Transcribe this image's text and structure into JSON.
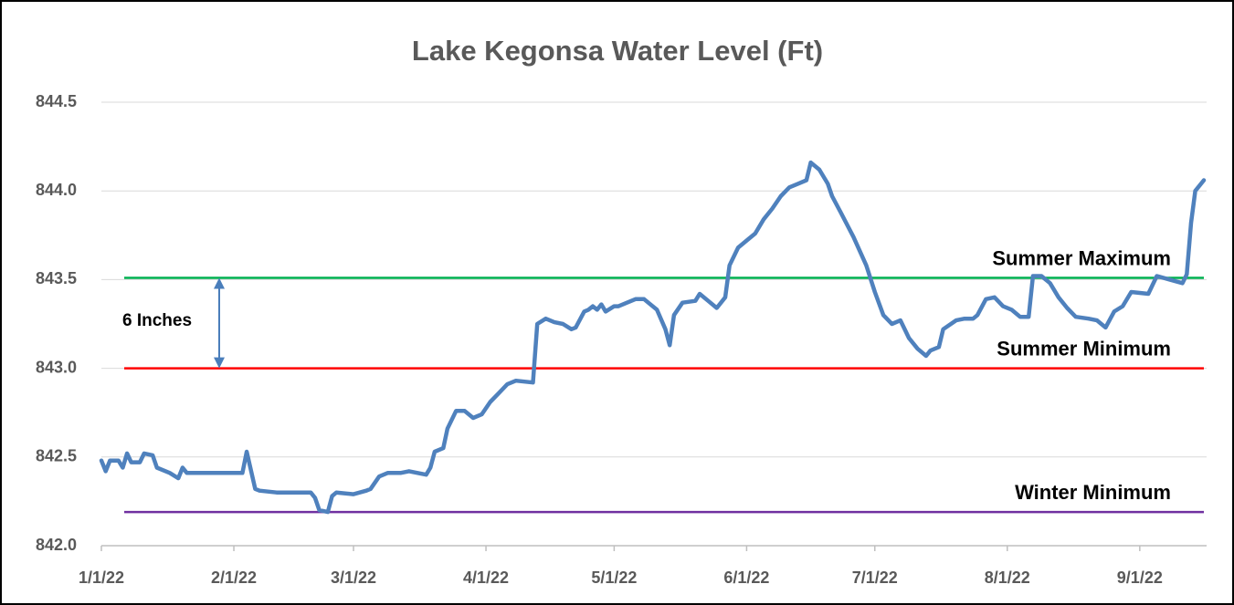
{
  "chart_data": {
    "type": "line",
    "title": "Lake Kegonsa Water Level (Ft)",
    "x": [
      "1/1/22",
      "1/2/22",
      "1/3/22",
      "1/5/22",
      "1/6/22",
      "1/7/22",
      "1/8/22",
      "1/10/22",
      "1/11/22",
      "1/13/22",
      "1/14/22",
      "1/17/22",
      "1/19/22",
      "1/20/22",
      "1/21/22",
      "2/3/22",
      "2/4/22",
      "2/6/22",
      "2/7/22",
      "2/11/22",
      "2/19/22",
      "2/20/22",
      "2/21/22",
      "2/23/22",
      "2/24/22",
      "2/25/22",
      "3/1/22",
      "3/4/22",
      "3/5/22",
      "3/7/22",
      "3/9/22",
      "3/12/22",
      "3/14/22",
      "3/16/22",
      "3/18/22",
      "3/19/22",
      "3/20/22",
      "3/22/22",
      "3/23/22",
      "3/25/22",
      "3/27/22",
      "3/29/22",
      "3/31/22",
      "4/2/22",
      "4/4/22",
      "4/6/22",
      "4/8/22",
      "4/12/22",
      "4/13/22",
      "4/15/22",
      "4/17/22",
      "4/19/22",
      "4/21/22",
      "4/22/22",
      "4/24/22",
      "4/25/22",
      "4/26/22",
      "4/27/22",
      "4/28/22",
      "4/29/22",
      "5/1/22",
      "5/2/22",
      "5/4/22",
      "5/6/22",
      "5/8/22",
      "5/9/22",
      "5/11/22",
      "5/13/22",
      "5/14/22",
      "5/15/22",
      "5/17/22",
      "5/20/22",
      "5/21/22",
      "5/23/22",
      "5/25/22",
      "5/27/22",
      "5/28/22",
      "5/30/22",
      "6/1/22",
      "6/3/22",
      "6/5/22",
      "6/7/22",
      "6/9/22",
      "6/11/22",
      "6/13/22",
      "6/15/22",
      "6/16/22",
      "6/18/22",
      "6/20/22",
      "6/21/22",
      "6/23/22",
      "6/26/22",
      "6/29/22",
      "7/1/22",
      "7/3/22",
      "7/5/22",
      "7/7/22",
      "7/9/22",
      "7/11/22",
      "7/13/22",
      "7/14/22",
      "7/16/22",
      "7/17/22",
      "7/20/22",
      "7/22/22",
      "7/24/22",
      "7/25/22",
      "7/27/22",
      "7/29/22",
      "7/31/22",
      "8/2/22",
      "8/4/22",
      "8/6/22",
      "8/7/22",
      "8/9/22",
      "8/11/22",
      "8/13/22",
      "8/15/22",
      "8/17/22",
      "8/20/22",
      "8/22/22",
      "8/24/22",
      "8/26/22",
      "8/28/22",
      "8/30/22",
      "9/3/22",
      "9/5/22",
      "9/8/22",
      "9/11/22",
      "9/12/22",
      "9/13/22",
      "9/14/22",
      "9/16/22"
    ],
    "series": [
      {
        "color": "#4f81bd",
        "values": [
          842.48,
          842.42,
          842.48,
          842.48,
          842.44,
          842.52,
          842.47,
          842.47,
          842.52,
          842.51,
          842.44,
          842.41,
          842.38,
          842.44,
          842.41,
          842.41,
          842.53,
          842.32,
          842.31,
          842.3,
          842.3,
          842.27,
          842.2,
          842.19,
          842.28,
          842.3,
          842.29,
          842.31,
          842.32,
          842.39,
          842.41,
          842.41,
          842.42,
          842.41,
          842.4,
          842.44,
          842.53,
          842.55,
          842.66,
          842.76,
          842.76,
          842.72,
          842.74,
          842.81,
          842.86,
          842.91,
          842.93,
          842.92,
          843.25,
          843.28,
          843.26,
          843.25,
          843.22,
          843.23,
          843.32,
          843.33,
          843.35,
          843.33,
          843.36,
          843.32,
          843.35,
          843.35,
          843.37,
          843.39,
          843.39,
          843.37,
          843.33,
          843.22,
          843.13,
          843.3,
          843.37,
          843.38,
          843.42,
          843.38,
          843.34,
          843.4,
          843.58,
          843.68,
          843.72,
          843.76,
          843.84,
          843.9,
          843.97,
          844.02,
          844.04,
          844.06,
          844.16,
          844.12,
          844.04,
          843.97,
          843.88,
          843.74,
          843.58,
          843.43,
          843.3,
          843.25,
          843.27,
          843.17,
          843.11,
          843.07,
          843.1,
          843.12,
          843.22,
          843.27,
          843.28,
          843.28,
          843.3,
          843.39,
          843.4,
          843.35,
          843.33,
          843.29,
          843.29,
          843.52,
          843.52,
          843.48,
          843.4,
          843.34,
          843.29,
          843.28,
          843.27,
          843.23,
          843.32,
          843.35,
          843.43,
          843.42,
          843.52,
          843.5,
          843.48,
          843.53,
          843.82,
          844.0,
          844.06
        ]
      }
    ],
    "reference_lines": [
      {
        "label": "Summer Maximum",
        "value": 843.51,
        "color": "#00b050"
      },
      {
        "label": "Summer Minimum",
        "value": 843.0,
        "color": "#ff0000"
      },
      {
        "label": "Winter Minimum",
        "value": 842.19,
        "color": "#7030a0"
      }
    ],
    "annotation": "6 Inches",
    "xlim": [
      "1/1/22",
      "9/16/22"
    ],
    "xticks": [
      "1/1/22",
      "2/1/22",
      "3/1/22",
      "4/1/22",
      "5/1/22",
      "6/1/22",
      "7/1/22",
      "8/1/22",
      "9/1/22"
    ],
    "ylim": [
      842.0,
      844.5
    ],
    "yticks": [
      {
        "value": 842.0,
        "label": "842.0"
      },
      842.5,
      {
        "value": 843.0,
        "label": "843.0"
      },
      843.5,
      {
        "value": 844.0,
        "label": "844.0"
      },
      844.5
    ],
    "grid": true
  }
}
